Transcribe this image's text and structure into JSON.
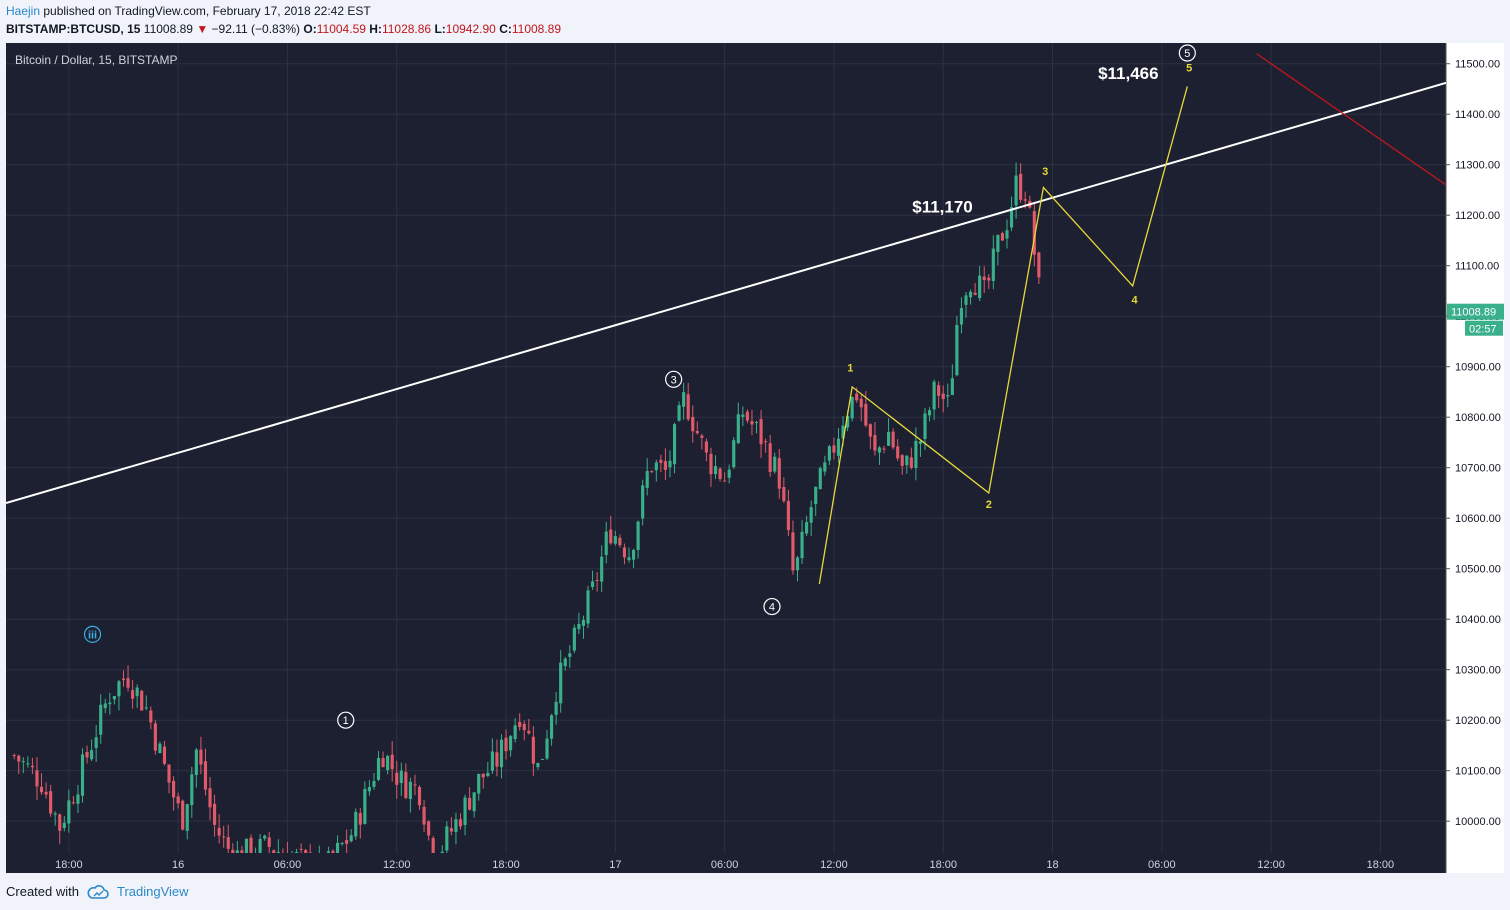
{
  "header": {
    "author": "Haejin",
    "published_text": " published on TradingView.com, February 17, 2018 22:42 EST",
    "symbol": "BITSTAMP:BTCUSD, 15",
    "last": "11008.89",
    "change_arrow": "▼",
    "change": "−92.11 (−0.83%)",
    "open_label": "O:",
    "open": "11004.59",
    "high_label": "H:",
    "high": "11028.86",
    "low_label": "L:",
    "low": "10942.90",
    "close_label": "C:",
    "close": "11008.89"
  },
  "footer": {
    "created_with": "Created with",
    "brand": "TradingView"
  },
  "colors": {
    "background": "#1c2030",
    "grid": "#2c3143",
    "up": "#3ab08a",
    "down": "#e05a6a",
    "trendline": "#ffffff",
    "wave": "#e6d83a",
    "red_line": "#c3161c",
    "price_tag": "#3ab08a",
    "text": "#d1d4dc",
    "circle_label_blue": "#3eaee4"
  },
  "chart_data": {
    "type": "candlestick",
    "title": "Bitcoin / Dollar, 15, BITSTAMP",
    "x_unit": "hours since Feb 15 15:00 (15-minute bars)",
    "x_ticks": [
      {
        "t": 3,
        "label": "18:00"
      },
      {
        "t": 9,
        "label": "16"
      },
      {
        "t": 15,
        "label": "06:00"
      },
      {
        "t": 21,
        "label": "12:00"
      },
      {
        "t": 27,
        "label": "18:00"
      },
      {
        "t": 33,
        "label": "17"
      },
      {
        "t": 39,
        "label": "06:00"
      },
      {
        "t": 45,
        "label": "12:00"
      },
      {
        "t": 51,
        "label": "18:00"
      },
      {
        "t": 57,
        "label": "18"
      },
      {
        "t": 63,
        "label": "06:00"
      },
      {
        "t": 69,
        "label": "12:00"
      },
      {
        "t": 75,
        "label": "18:00"
      }
    ],
    "xlim": [
      -0.45,
      78.6
    ],
    "ylim": [
      9937,
      11541
    ],
    "y_ticks": [
      10000,
      10100,
      10200,
      10300,
      10400,
      10500,
      10600,
      10700,
      10800,
      10900,
      11000,
      11100,
      11200,
      11300,
      11400,
      11500
    ],
    "y_tick_format": "decimals2",
    "last_price": {
      "value": 11008.89,
      "label": "11008.89",
      "countdown": "02:57"
    },
    "anchors": [
      {
        "t": 0.0,
        "p": 10130
      },
      {
        "t": 1.5,
        "p": 10080
      },
      {
        "t": 2.5,
        "p": 9990
      },
      {
        "t": 3.5,
        "p": 10080
      },
      {
        "t": 5.2,
        "p": 10250
      },
      {
        "t": 6.2,
        "p": 10290
      },
      {
        "t": 7.3,
        "p": 10220
      },
      {
        "t": 8.3,
        "p": 10100
      },
      {
        "t": 9.2,
        "p": 10000
      },
      {
        "t": 10.0,
        "p": 10140
      },
      {
        "t": 11.0,
        "p": 9990
      },
      {
        "t": 12.0,
        "p": 9930
      },
      {
        "t": 14.0,
        "p": 9950
      },
      {
        "t": 17.0,
        "p": 9900
      },
      {
        "t": 18.6,
        "p": 9980
      },
      {
        "t": 20.2,
        "p": 10140
      },
      {
        "t": 21.2,
        "p": 10080
      },
      {
        "t": 22.3,
        "p": 10060
      },
      {
        "t": 23.0,
        "p": 9920
      },
      {
        "t": 24.3,
        "p": 10000
      },
      {
        "t": 25.5,
        "p": 10080
      },
      {
        "t": 26.5,
        "p": 10120
      },
      {
        "t": 27.8,
        "p": 10220
      },
      {
        "t": 28.8,
        "p": 10100
      },
      {
        "t": 29.7,
        "p": 10260
      },
      {
        "t": 30.7,
        "p": 10350
      },
      {
        "t": 31.8,
        "p": 10460
      },
      {
        "t": 32.7,
        "p": 10580
      },
      {
        "t": 33.8,
        "p": 10530
      },
      {
        "t": 34.9,
        "p": 10710
      },
      {
        "t": 35.8,
        "p": 10690
      },
      {
        "t": 36.8,
        "p": 10840
      },
      {
        "t": 38.0,
        "p": 10720
      },
      {
        "t": 39.0,
        "p": 10680
      },
      {
        "t": 40.0,
        "p": 10810
      },
      {
        "t": 41.0,
        "p": 10760
      },
      {
        "t": 42.0,
        "p": 10680
      },
      {
        "t": 42.8,
        "p": 10480
      },
      {
        "t": 43.8,
        "p": 10630
      },
      {
        "t": 44.8,
        "p": 10720
      },
      {
        "t": 45.6,
        "p": 10810
      },
      {
        "t": 46.3,
        "p": 10850
      },
      {
        "t": 47.2,
        "p": 10720
      },
      {
        "t": 48.0,
        "p": 10770
      },
      {
        "t": 48.8,
        "p": 10690
      },
      {
        "t": 49.8,
        "p": 10760
      },
      {
        "t": 50.6,
        "p": 10860
      },
      {
        "t": 51.3,
        "p": 10820
      },
      {
        "t": 51.9,
        "p": 11040
      },
      {
        "t": 52.6,
        "p": 11080
      },
      {
        "t": 53.3,
        "p": 11040
      },
      {
        "t": 54.0,
        "p": 11140
      },
      {
        "t": 54.5,
        "p": 11190
      },
      {
        "t": 55.0,
        "p": 11260
      },
      {
        "t": 55.5,
        "p": 11250
      },
      {
        "t": 55.8,
        "p": 11180
      },
      {
        "t": 56.1,
        "p": 11100
      },
      {
        "t": 56.4,
        "p": 11005
      }
    ],
    "series": [
      {
        "name": "trendline",
        "points": [
          [
            -0.45,
            10630
          ],
          [
            78.6,
            11462
          ]
        ]
      },
      {
        "name": "red-line",
        "points": [
          [
            68.2,
            11520
          ],
          [
            78.6,
            11260
          ]
        ]
      },
      {
        "name": "wave-path",
        "points": [
          [
            44.2,
            10470
          ],
          [
            46.0,
            10860
          ],
          [
            53.5,
            10650
          ],
          [
            56.5,
            11255
          ],
          [
            61.4,
            11060
          ],
          [
            64.4,
            11455
          ]
        ]
      }
    ],
    "annotations": [
      {
        "id": "label-11466",
        "text": "$11,466",
        "t": 59.5,
        "p": 11470
      },
      {
        "id": "label-11170",
        "text": "$11,170",
        "t": 49.3,
        "p": 11205
      }
    ],
    "circled_labels": [
      {
        "text": "iii",
        "t": 4.3,
        "p": 10370,
        "style": "blue"
      },
      {
        "text": "1",
        "t": 18.2,
        "p": 10200,
        "style": "white"
      },
      {
        "text": "3",
        "t": 36.2,
        "p": 10875,
        "style": "white"
      },
      {
        "text": "4",
        "t": 41.6,
        "p": 10425,
        "style": "white"
      },
      {
        "text": "5",
        "t": 64.4,
        "p": 11585,
        "style": "white"
      }
    ],
    "wave_labels": [
      {
        "text": "1",
        "t": 45.9,
        "p": 10890
      },
      {
        "text": "2",
        "t": 53.5,
        "p": 10620
      },
      {
        "text": "3",
        "t": 56.6,
        "p": 11280
      },
      {
        "text": "4",
        "t": 61.5,
        "p": 11025
      },
      {
        "text": "5",
        "t": 64.5,
        "p": 11485
      }
    ]
  }
}
